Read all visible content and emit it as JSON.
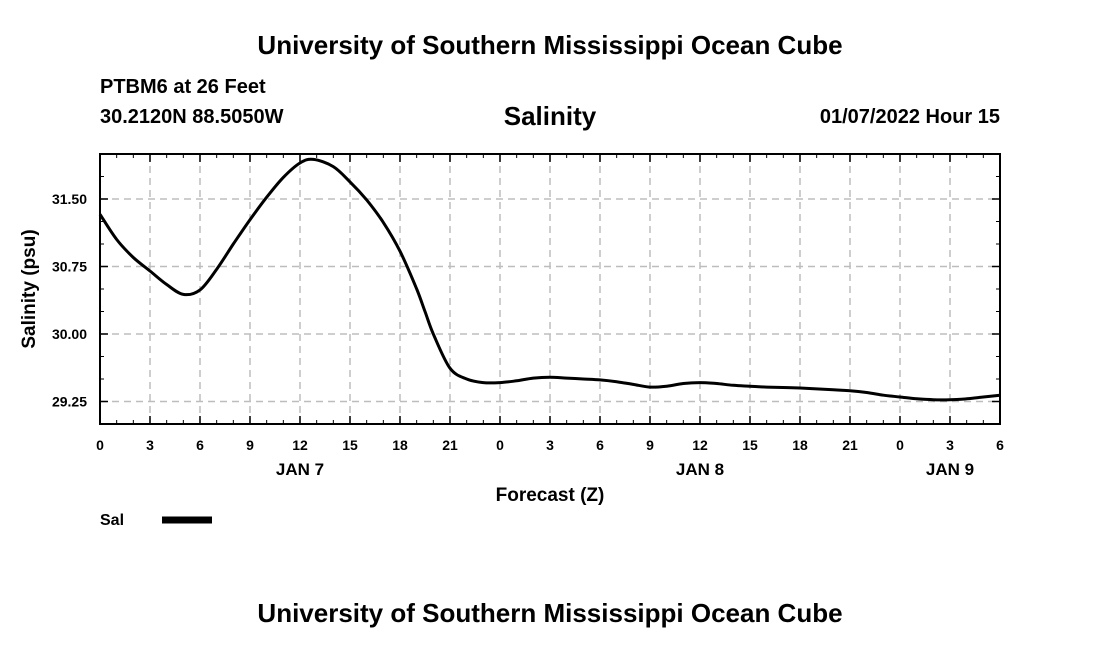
{
  "page": {
    "title_top": "University of Southern Mississippi Ocean Cube",
    "title_bottom": "University of Southern Mississippi Ocean Cube",
    "station": "PTBM6 at 26 Feet",
    "coordinates": "30.2120N  88.5050W",
    "datetime": "01/07/2022 Hour 15"
  },
  "chart_data": {
    "type": "line",
    "title": "Salinity",
    "xlabel": "Forecast (Z)",
    "ylabel": "Salinity (psu)",
    "xlim": [
      0,
      54
    ],
    "ylim": [
      29.0,
      32.0
    ],
    "yticks": [
      29.25,
      30.0,
      30.75,
      31.5
    ],
    "ytick_labels": [
      "29.25",
      "30.00",
      "30.75",
      "31.50"
    ],
    "xticks": [
      0,
      3,
      6,
      9,
      12,
      15,
      18,
      21,
      24,
      27,
      30,
      33,
      36,
      39,
      42,
      45,
      48,
      51,
      54
    ],
    "xtick_labels": [
      "0",
      "3",
      "6",
      "9",
      "12",
      "15",
      "18",
      "21",
      "0",
      "3",
      "6",
      "9",
      "12",
      "15",
      "18",
      "21",
      "0",
      "3",
      "6"
    ],
    "day_labels": [
      {
        "x": 12,
        "label": "JAN 7"
      },
      {
        "x": 36,
        "label": "JAN 8"
      },
      {
        "x": 51,
        "label": "JAN 9"
      }
    ],
    "grid": true,
    "legend": [
      {
        "name": "Sal",
        "color": "#000000"
      }
    ],
    "series": [
      {
        "name": "Sal",
        "color": "#000000",
        "x": [
          0,
          1,
          2,
          3,
          4,
          5,
          6,
          7,
          8,
          9,
          10,
          11,
          12,
          12.8,
          14,
          15,
          16,
          17,
          18,
          19,
          19.5,
          20,
          21,
          22,
          23,
          24,
          25,
          26,
          27,
          28,
          29,
          30,
          31,
          32,
          33,
          34,
          35,
          36,
          37,
          38,
          39,
          40,
          42,
          44,
          45,
          46,
          47,
          48,
          49,
          50,
          51,
          52,
          53,
          54
        ],
        "y": [
          31.33,
          31.05,
          30.85,
          30.7,
          30.55,
          30.44,
          30.49,
          30.72,
          31.0,
          31.27,
          31.52,
          31.74,
          31.9,
          31.94,
          31.86,
          31.69,
          31.49,
          31.24,
          30.92,
          30.5,
          30.25,
          30.0,
          29.62,
          29.5,
          29.46,
          29.46,
          29.48,
          29.51,
          29.52,
          29.51,
          29.5,
          29.49,
          29.47,
          29.44,
          29.41,
          29.42,
          29.45,
          29.46,
          29.45,
          29.43,
          29.42,
          29.41,
          29.4,
          29.38,
          29.37,
          29.35,
          29.32,
          29.3,
          29.28,
          29.27,
          29.27,
          29.28,
          29.3,
          29.32
        ]
      }
    ]
  }
}
